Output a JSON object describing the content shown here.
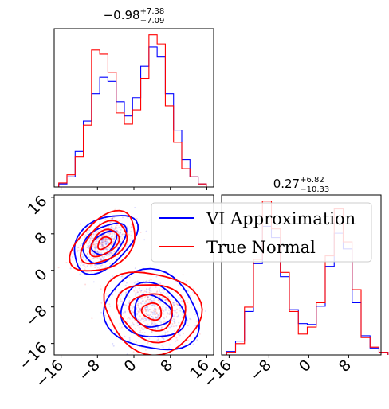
{
  "chart_data": {
    "type": "corner",
    "colors": {
      "vi": "#0000ff",
      "true": "#ff0000"
    },
    "legend": {
      "placement": "upper-right-of-lower-left-panel",
      "entries": [
        {
          "name": "VI Approximation",
          "color": "#0000ff"
        },
        {
          "name": "True Normal",
          "color": "#ff0000"
        }
      ]
    },
    "ticks": [
      -16,
      -8,
      0,
      8,
      16
    ],
    "hist_x_range": [
      -17.5,
      17.5
    ],
    "scatter_x_range": [
      -17.5,
      17.5
    ],
    "scatter_y_range": [
      -18.5,
      16.5
    ],
    "hist2_x_range": [
      -17.5,
      14.5
    ],
    "panels": [
      {
        "id": "top-left",
        "title": {
          "value": "−0.98",
          "upper": "+7.38",
          "lower": "−7.09"
        },
        "bin_edges": [
          -16.5,
          -14.7,
          -12.9,
          -11.1,
          -9.3,
          -7.5,
          -5.7,
          -3.9,
          -2.1,
          -0.3,
          1.5,
          3.3,
          5.1,
          6.9,
          8.7,
          10.5,
          12.3,
          14.1,
          15.9
        ],
        "vi_counts": [
          0.3,
          1.0,
          3.5,
          6.5,
          9.2,
          10.8,
          10.4,
          8.4,
          7.0,
          8.8,
          11.9,
          13.8,
          12.8,
          9.2,
          5.6,
          2.7,
          1.0,
          0.3
        ],
        "true_counts": [
          0.4,
          1.2,
          3.0,
          6.1,
          13.5,
          13.1,
          11.3,
          7.3,
          6.2,
          7.6,
          10.7,
          15.0,
          14.1,
          8.0,
          4.4,
          1.8,
          1.0,
          0.3
        ]
      },
      {
        "id": "bottom-right",
        "title": {
          "value": "0.27",
          "upper": "+6.82",
          "lower": "−10.33"
        },
        "bin_edges": [
          -16.5,
          -14.7,
          -12.9,
          -11.1,
          -9.3,
          -7.5,
          -5.7,
          -3.9,
          -2.1,
          -0.3,
          1.5,
          3.3,
          5.1,
          6.9,
          8.7,
          10.5,
          12.3,
          14.1,
          15.9
        ],
        "vi_counts": [
          0.4,
          1.6,
          5.0,
          10.5,
          14.8,
          13.5,
          9.0,
          5.2,
          3.6,
          3.5,
          5.6,
          10.2,
          14.0,
          12.2,
          6.0,
          2.2,
          0.8,
          0.3
        ],
        "true_counts": [
          0.3,
          1.3,
          5.5,
          11.0,
          17.7,
          14.5,
          9.5,
          5.0,
          2.4,
          3.2,
          6.0,
          11.4,
          16.8,
          13.0,
          7.5,
          2.0,
          0.9,
          0.3
        ]
      }
    ],
    "modes": [
      {
        "center": [
          -6.5,
          6.0
        ],
        "spread": [
          3.2,
          2.0
        ],
        "angle_deg": 40
      },
      {
        "center": [
          4.0,
          -9.0
        ],
        "spread": [
          4.2,
          3.4
        ],
        "angle_deg": -20
      }
    ],
    "contours": {
      "vi_levels": [
        1.0,
        1.7,
        2.5
      ],
      "true_levels": [
        0.55,
        1.2,
        1.9,
        2.7
      ]
    }
  }
}
